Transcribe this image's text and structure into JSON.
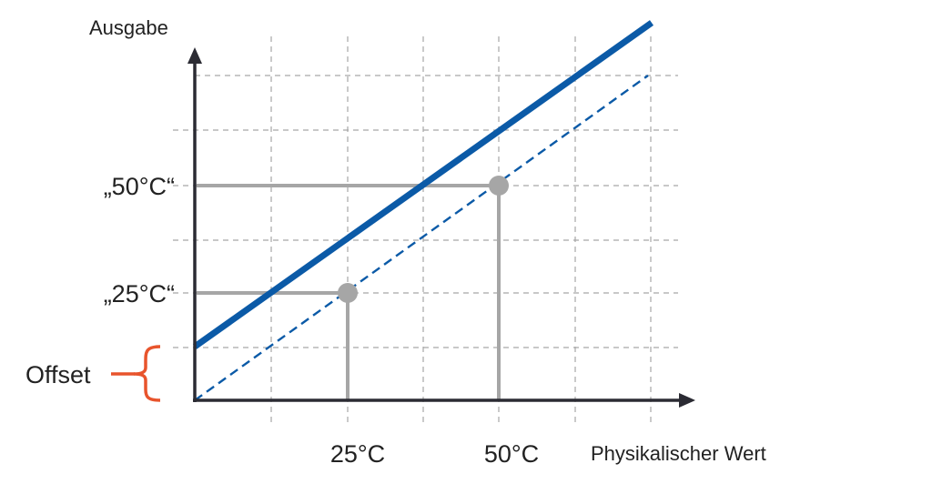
{
  "axes": {
    "y_title": "Ausgabe",
    "x_title": "Physikalischer Wert"
  },
  "tick_labels": {
    "y_50": "„50°C“",
    "y_25": "„25°C“",
    "x_25": "25°C",
    "x_50": "50°C"
  },
  "offset_label": "Offset",
  "colors": {
    "measured_line": "#0b5aa7",
    "ideal_line": "#0b5aa7",
    "markers": "#a6a6a6",
    "axis": "#2b2b33",
    "offset_brace": "#e8542c"
  }
}
